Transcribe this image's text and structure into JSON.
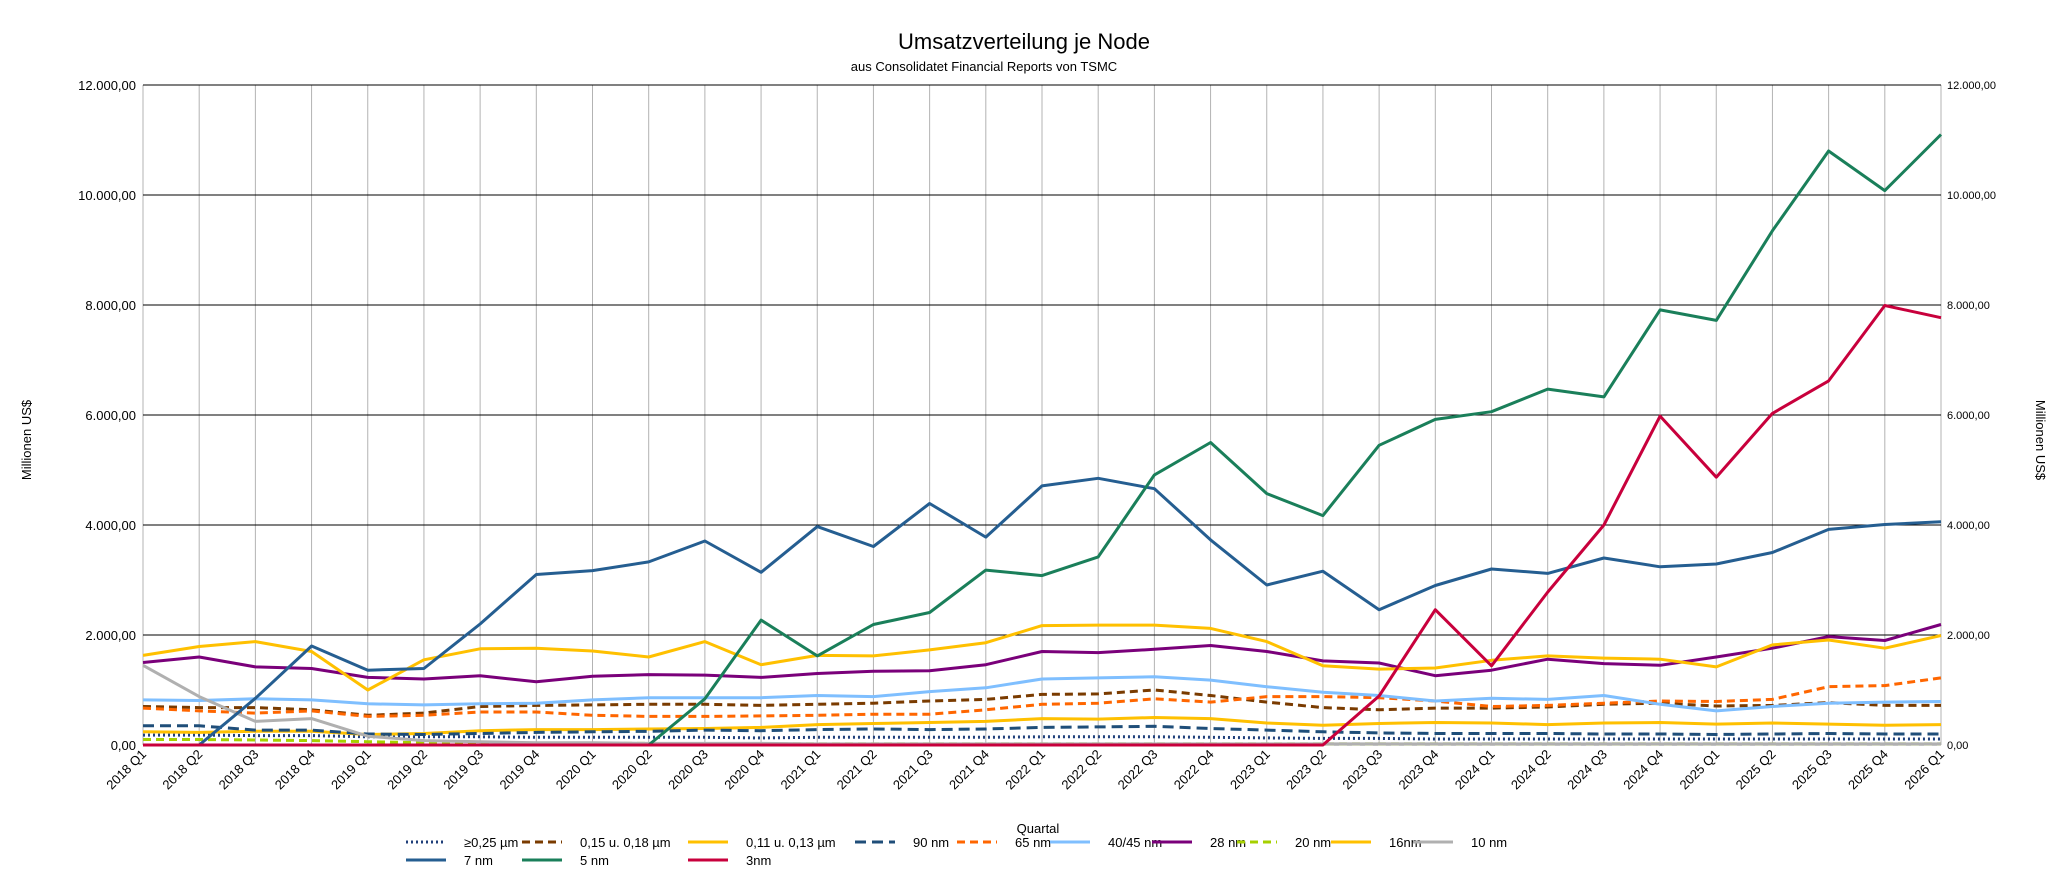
{
  "chart_data": {
    "type": "line",
    "title": "Umsatzverteilung je Node",
    "subtitle": "aus Consolidatet Financial Reports von TSMC",
    "xlabel": "Quartal",
    "ylabel": "Millionen US$",
    "ylabel_right": "Millionen US$",
    "ylim": [
      0,
      12000
    ],
    "yticks": [
      0,
      2000,
      4000,
      6000,
      8000,
      10000,
      12000
    ],
    "ytick_labels": [
      "0,00",
      "2.000,00",
      "4.000,00",
      "6.000,00",
      "8.000,00",
      "10.000,00",
      "12.000,00"
    ],
    "grid": "horizontal and vertical",
    "legend_position": "bottom",
    "categories": [
      "2018 Q1",
      "2018 Q2",
      "2018 Q3",
      "2018 Q4",
      "2019 Q1",
      "2019 Q2",
      "2019 Q3",
      "2019 Q4",
      "2020 Q1",
      "2020 Q2",
      "2020 Q3",
      "2020 Q4",
      "2021 Q1",
      "2021 Q2",
      "2021 Q3",
      "2021 Q4",
      "2022 Q1",
      "2022 Q2",
      "2022 Q3",
      "2022 Q4",
      "2023 Q1",
      "2023 Q2",
      "2023 Q3",
      "2023 Q4",
      "2024 Q1",
      "2024 Q2",
      "2024 Q3",
      "2024 Q4",
      "2025 Q1",
      "2025 Q2",
      "2025 Q3",
      "2025 Q4",
      "2026 Q1"
    ],
    "series": [
      {
        "name": "≥0,25 µm",
        "color": "#1f3f7a",
        "dash": "dot",
        "values": [
          180,
          180,
          170,
          170,
          150,
          150,
          150,
          140,
          140,
          140,
          140,
          130,
          140,
          140,
          140,
          140,
          150,
          150,
          150,
          140,
          130,
          120,
          120,
          110,
          110,
          110,
          110,
          110,
          110,
          110,
          110,
          110,
          110
        ]
      },
      {
        "name": "0,15 u. 0,18 µm",
        "color": "#7a3b00",
        "dash": "dash",
        "values": [
          700,
          680,
          680,
          640,
          540,
          580,
          700,
          720,
          730,
          740,
          740,
          720,
          740,
          760,
          800,
          830,
          920,
          930,
          1000,
          900,
          780,
          680,
          640,
          670,
          670,
          690,
          740,
          760,
          710,
          720,
          770,
          720,
          720
        ]
      },
      {
        "name": "0,11 u. 0,13 µm",
        "color": "#ffc000",
        "dash": "solid",
        "values": [
          240,
          230,
          250,
          250,
          190,
          210,
          260,
          280,
          280,
          290,
          300,
          320,
          370,
          390,
          410,
          430,
          480,
          470,
          500,
          480,
          400,
          360,
          390,
          410,
          400,
          370,
          400,
          410,
          380,
          400,
          380,
          360,
          370
        ]
      },
      {
        "name": "90 nm",
        "color": "#1f4e79",
        "dash": "longdash",
        "values": [
          350,
          350,
          270,
          270,
          200,
          190,
          210,
          230,
          240,
          250,
          270,
          260,
          280,
          290,
          280,
          290,
          320,
          330,
          340,
          300,
          270,
          240,
          220,
          210,
          210,
          210,
          200,
          200,
          190,
          200,
          210,
          200,
          200
        ]
      },
      {
        "name": "65 nm",
        "color": "#ff6600",
        "dash": "dash",
        "values": [
          670,
          620,
          580,
          620,
          520,
          540,
          600,
          600,
          540,
          520,
          520,
          530,
          540,
          560,
          560,
          640,
          740,
          760,
          840,
          780,
          880,
          880,
          860,
          800,
          700,
          720,
          760,
          800,
          790,
          830,
          1060,
          1080,
          1220
        ]
      },
      {
        "name": "40/45 nm",
        "color": "#7fbfff",
        "dash": "solid",
        "values": [
          820,
          810,
          840,
          820,
          750,
          730,
          750,
          760,
          820,
          860,
          860,
          860,
          900,
          880,
          970,
          1040,
          1200,
          1220,
          1240,
          1180,
          1060,
          960,
          900,
          800,
          850,
          830,
          900,
          740,
          620,
          700,
          760,
          780,
          790
        ]
      },
      {
        "name": "28 nm",
        "color": "#7a007a",
        "dash": "solid",
        "values": [
          1500,
          1600,
          1420,
          1390,
          1230,
          1200,
          1260,
          1150,
          1250,
          1280,
          1270,
          1230,
          1300,
          1340,
          1350,
          1460,
          1700,
          1680,
          1740,
          1810,
          1700,
          1530,
          1490,
          1260,
          1360,
          1560,
          1480,
          1450,
          1600,
          1760,
          1970,
          1900,
          2190
        ]
      },
      {
        "name": "20 nm",
        "color": "#a6d000",
        "dash": "dash",
        "values": [
          100,
          100,
          90,
          80,
          60,
          40,
          40,
          30,
          30,
          30,
          20,
          20,
          20,
          20,
          20,
          20,
          20,
          20,
          20,
          20,
          20,
          20,
          20,
          20,
          20,
          20,
          20,
          20,
          20,
          20,
          20,
          20,
          20
        ]
      },
      {
        "name": "16nm",
        "color": "#ffc000",
        "dash": "solid",
        "values": [
          1630,
          1790,
          1880,
          1700,
          1000,
          1550,
          1750,
          1760,
          1710,
          1600,
          1880,
          1460,
          1630,
          1620,
          1730,
          1860,
          2170,
          2180,
          2180,
          2120,
          1880,
          1440,
          1380,
          1400,
          1540,
          1620,
          1580,
          1560,
          1420,
          1820,
          1910,
          1760,
          1990
        ]
      },
      {
        "name": "10 nm",
        "color": "#b0b0b0",
        "dash": "solid",
        "values": [
          1450,
          880,
          430,
          480,
          160,
          80,
          60,
          40,
          40,
          30,
          30,
          30,
          20,
          20,
          20,
          20,
          20,
          20,
          20,
          20,
          20,
          20,
          20,
          20,
          20,
          20,
          20,
          20,
          20,
          20,
          20,
          20,
          20
        ]
      },
      {
        "name": "7 nm",
        "color": "#255e91",
        "dash": "solid",
        "values": [
          0,
          0,
          850,
          1800,
          1360,
          1390,
          2200,
          3100,
          3170,
          3330,
          3710,
          3140,
          3970,
          3610,
          4390,
          3780,
          4710,
          4850,
          4660,
          3730,
          2910,
          3160,
          2460,
          2900,
          3200,
          3120,
          3400,
          3240,
          3290,
          3500,
          3920,
          4010,
          4060
        ]
      },
      {
        "name": "5 nm",
        "color": "#1a7f5a",
        "dash": "solid",
        "values": [
          0,
          0,
          0,
          0,
          0,
          0,
          0,
          0,
          0,
          0,
          840,
          2270,
          1620,
          2190,
          2410,
          3180,
          3080,
          3420,
          4910,
          5500,
          4570,
          4170,
          5450,
          5920,
          6060,
          6470,
          6330,
          7910,
          7720,
          9350,
          10800,
          10080,
          11100
        ]
      },
      {
        "name": "3nm",
        "color": "#c8003c",
        "dash": "solid",
        "values": [
          0,
          0,
          0,
          0,
          0,
          0,
          0,
          0,
          0,
          0,
          0,
          0,
          0,
          0,
          0,
          0,
          0,
          0,
          0,
          0,
          0,
          0,
          890,
          2460,
          1440,
          2780,
          4000,
          5980,
          4870,
          6030,
          6620,
          7990,
          7770
        ]
      }
    ]
  }
}
